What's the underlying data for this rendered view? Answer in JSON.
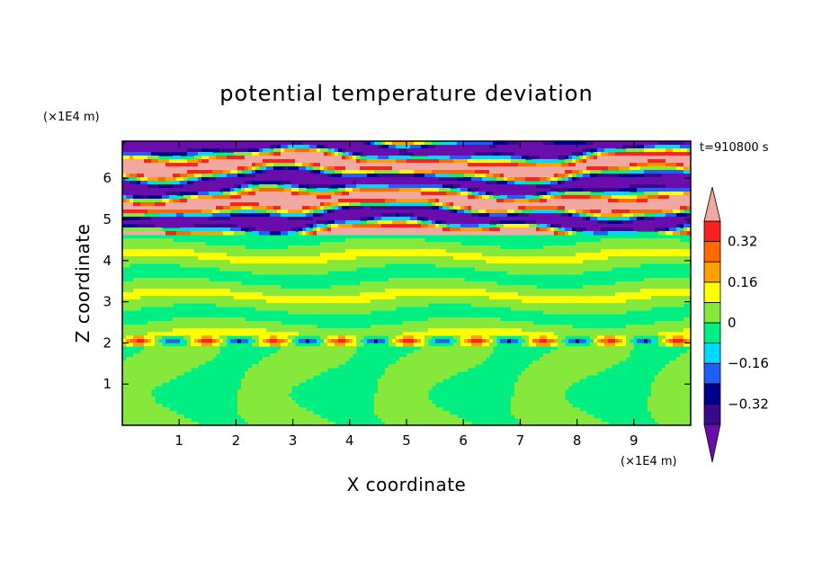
{
  "chart_data": {
    "type": "heatmap",
    "title": "potential temperature deviation",
    "xlabel": "X coordinate",
    "ylabel": "Z coordinate",
    "x_unit": "(×1E4 m)",
    "y_unit": "(×1E4 m)",
    "time_label": "t=910800 s",
    "xlim": [
      0,
      10
    ],
    "ylim": [
      0,
      6.9
    ],
    "x_ticks": [
      "1",
      "2",
      "3",
      "4",
      "5",
      "6",
      "7",
      "8",
      "9"
    ],
    "y_ticks": [
      "1",
      "2",
      "3",
      "4",
      "5",
      "6"
    ],
    "x_tick_values": [
      1,
      2,
      3,
      4,
      5,
      6,
      7,
      8,
      9
    ],
    "y_tick_values": [
      1,
      2,
      3,
      4,
      5,
      6
    ],
    "colorbar": {
      "levels": [
        -0.48,
        -0.4,
        -0.32,
        -0.24,
        -0.16,
        -0.08,
        0,
        0.08,
        0.16,
        0.24,
        0.32,
        0.4,
        0.48
      ],
      "labels": [
        "0.32",
        "0.16",
        "0",
        "−0.16",
        "−0.32"
      ],
      "label_values": [
        0.32,
        0.16,
        0,
        -0.16,
        -0.32
      ],
      "colors": [
        "#6a0dad",
        "#3a0a8c",
        "#00008c",
        "#1f5fff",
        "#00d8ff",
        "#00ee82",
        "#86e83a",
        "#ffff00",
        "#ffa000",
        "#ff6a00",
        "#ff2020",
        "#f0a8a0"
      ]
    },
    "fields": {
      "lower_boundary_z": 4.6,
      "stable_layer_z": 2.05,
      "description_only": ""
    }
  }
}
